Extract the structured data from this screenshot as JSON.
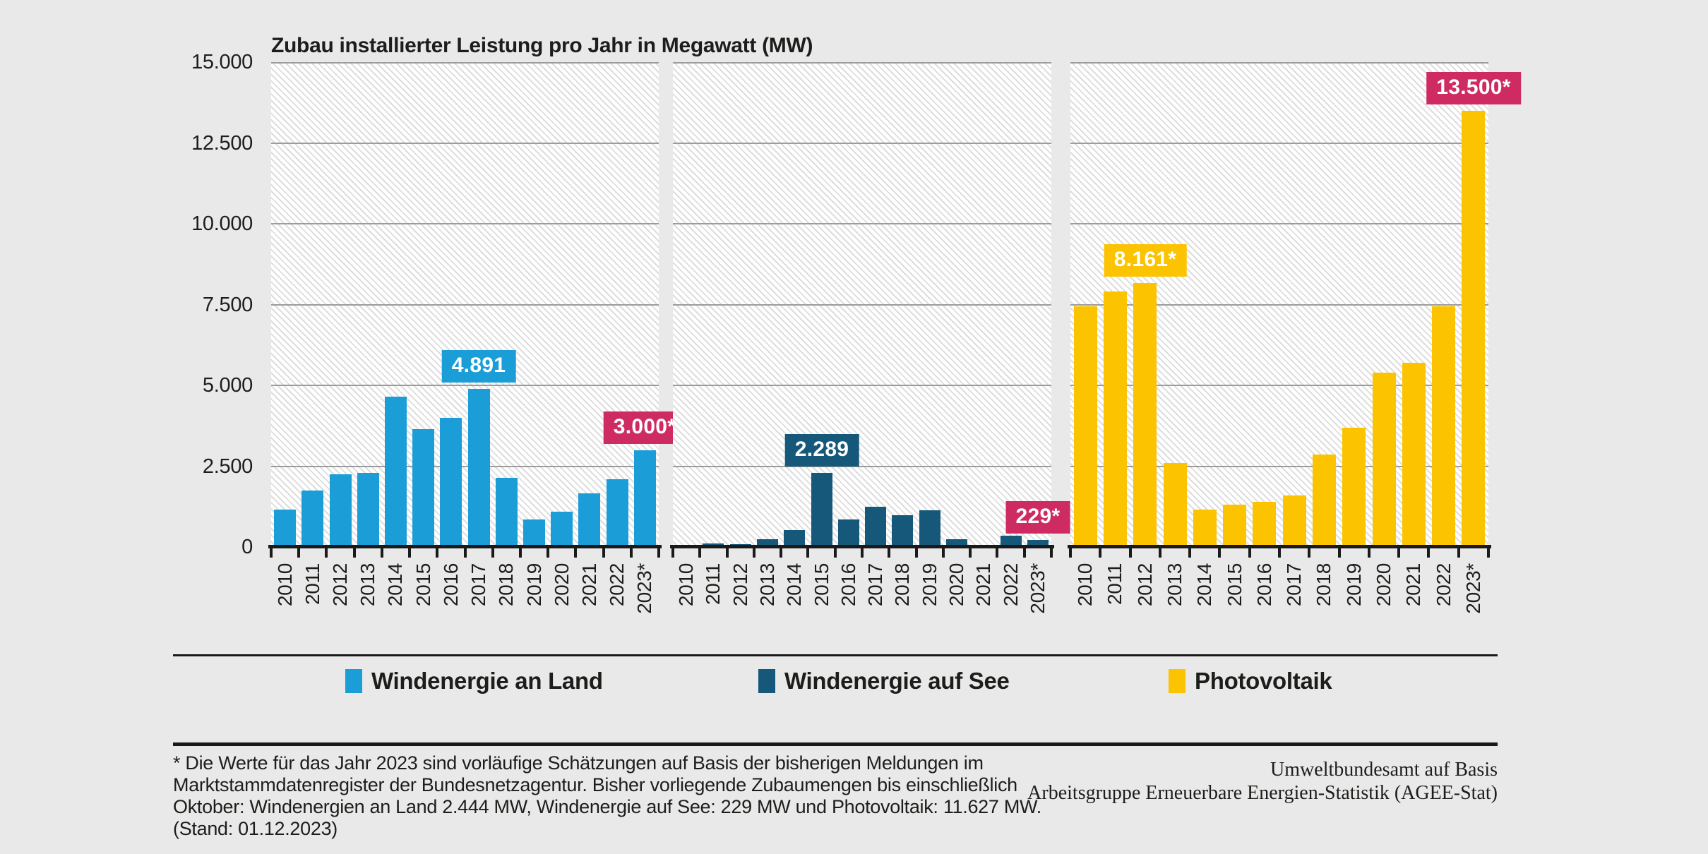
{
  "title": "Zubau installierter Leistung pro Jahr in Megawatt (MW)",
  "y_axis": {
    "tick_labels": [
      "15.000",
      "12.500",
      "10.000",
      "7.500",
      "5.000",
      "2.500",
      "0"
    ],
    "max": 15000,
    "step": 2500
  },
  "chart_data": {
    "type": "bar",
    "unit": "MW",
    "title": "Zubau installierter Leistung pro Jahr in Megawatt (MW)",
    "categories": [
      "2010",
      "2011",
      "2012",
      "2013",
      "2014",
      "2015",
      "2016",
      "2017",
      "2018",
      "2019",
      "2020",
      "2021",
      "2022",
      "2023*"
    ],
    "ylim": [
      0,
      15000
    ],
    "gridline_step": 2500,
    "grid": true,
    "legend_position": "bottom",
    "series": [
      {
        "name": "Windenergie an Land",
        "color": "#1b9ed8",
        "values": [
          1150,
          1750,
          2250,
          2300,
          4650,
          3650,
          4000,
          4891,
          2150,
          850,
          1100,
          1650,
          2100,
          3000
        ]
      },
      {
        "name": "Windenergie auf See",
        "color": "#16587a",
        "values": [
          50,
          110,
          80,
          240,
          520,
          2289,
          850,
          1250,
          975,
          1125,
          240,
          0,
          350,
          229
        ]
      },
      {
        "name": "Photovoltaik",
        "color": "#fcc300",
        "values": [
          7450,
          7900,
          8161,
          2600,
          1150,
          1300,
          1400,
          1600,
          2850,
          3700,
          5400,
          5700,
          7450,
          13500
        ]
      }
    ],
    "annotations": [
      {
        "series": 0,
        "index": 7,
        "label": "4.891",
        "bg": "#1b9ed8"
      },
      {
        "series": 0,
        "index": 13,
        "label": "3.000*",
        "bg": "#cf2b63"
      },
      {
        "series": 1,
        "index": 5,
        "label": "2.289",
        "bg": "#16587a"
      },
      {
        "series": 1,
        "index": 13,
        "label": "229*",
        "bg": "#cf2b63"
      },
      {
        "series": 2,
        "index": 2,
        "label": "8.161*",
        "bg": "#fcc300"
      },
      {
        "series": 2,
        "index": 13,
        "label": "13.500*",
        "bg": "#cf2b63"
      }
    ]
  },
  "legend": {
    "items": [
      {
        "label": "Windenergie an Land",
        "color": "#1b9ed8"
      },
      {
        "label": "Windenergie auf See",
        "color": "#16587a"
      },
      {
        "label": "Photovoltaik",
        "color": "#fcc300"
      }
    ]
  },
  "footnote": {
    "lines": [
      "* Die Werte für das Jahr 2023 sind vorläufige Schätzungen auf Basis der bisherigen Meldungen im",
      "Marktstammdatenregister der Bundesnetzagentur. Bisher vorliegende Zubaumengen bis einschließlich",
      "Oktober: Windenergien an Land 2.444 MW, Windenergie auf See: 229 MW und Photovoltaik: 11.627 MW.",
      "(Stand: 01.12.2023)"
    ]
  },
  "source": {
    "lines": [
      "Umweltbundesamt auf Basis",
      "Arbeitsgruppe Erneuerbare Energien-Statistik (AGEE-Stat)"
    ]
  },
  "colors": {
    "background": "#e9e9e9",
    "grid": "#9c9c9c",
    "axis": "#1a1a1a",
    "text": "#1d1d1b",
    "annotation_text": "#ffffff",
    "highlight": "#cf2b63"
  }
}
